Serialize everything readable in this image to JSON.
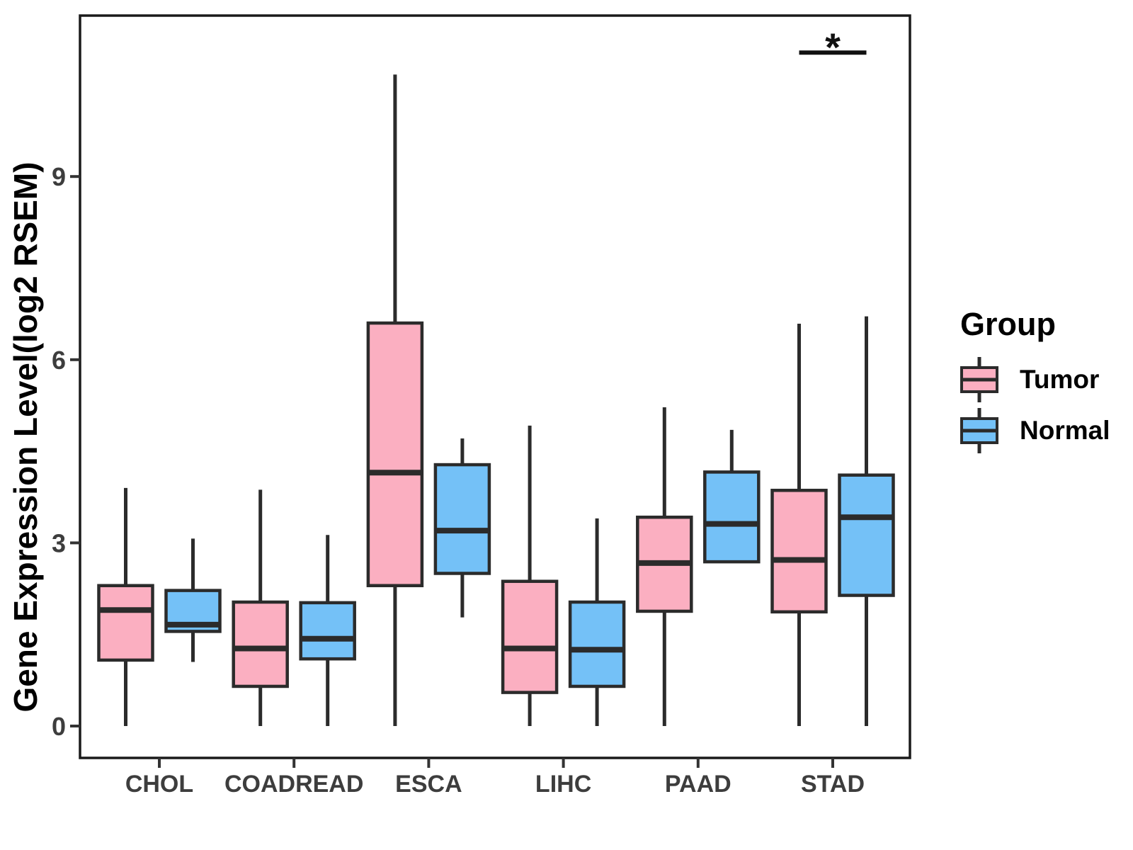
{
  "legend": {
    "title": "Group",
    "entries": [
      {
        "label": "Tumor",
        "color": "#FBAFC1"
      },
      {
        "label": "Normal",
        "color": "#74C1F7"
      }
    ]
  },
  "chart_data": {
    "type": "boxplot",
    "title": "",
    "xlabel": "",
    "ylabel": "Gene Expression Level(log2 RSEM)",
    "categories": [
      "CHOL",
      "COADREAD",
      "ESCA",
      "LIHC",
      "PAAD",
      "STAD"
    ],
    "y_ticks": [
      0,
      3,
      6,
      9
    ],
    "ylim": [
      -0.55,
      11.6
    ],
    "grid": false,
    "legend_position": "right",
    "series": [
      {
        "name": "Tumor",
        "color": "#FBAFC1",
        "boxes": [
          {
            "category": "CHOL",
            "min": 0,
            "q1": 1.08,
            "median": 1.9,
            "q3": 2.3,
            "max": 3.9
          },
          {
            "category": "COADREAD",
            "min": 0,
            "q1": 0.65,
            "median": 1.27,
            "q3": 2.03,
            "max": 3.87
          },
          {
            "category": "ESCA",
            "min": 0,
            "q1": 2.3,
            "median": 4.15,
            "q3": 6.6,
            "max": 10.67
          },
          {
            "category": "LIHC",
            "min": 0,
            "q1": 0.55,
            "median": 1.27,
            "q3": 2.37,
            "max": 4.92
          },
          {
            "category": "PAAD",
            "min": 0,
            "q1": 1.88,
            "median": 2.67,
            "q3": 3.42,
            "max": 5.22
          },
          {
            "category": "STAD",
            "min": 0,
            "q1": 1.87,
            "median": 2.72,
            "q3": 3.86,
            "max": 6.59
          }
        ]
      },
      {
        "name": "Normal",
        "color": "#74C1F7",
        "boxes": [
          {
            "category": "CHOL",
            "min": 1.05,
            "q1": 1.55,
            "median": 1.66,
            "q3": 2.22,
            "max": 3.07
          },
          {
            "category": "COADREAD",
            "min": 0,
            "q1": 1.1,
            "median": 1.43,
            "q3": 2.02,
            "max": 3.13
          },
          {
            "category": "ESCA",
            "min": 1.78,
            "q1": 2.5,
            "median": 3.2,
            "q3": 4.28,
            "max": 4.71
          },
          {
            "category": "LIHC",
            "min": 0,
            "q1": 0.65,
            "median": 1.25,
            "q3": 2.03,
            "max": 3.4
          },
          {
            "category": "PAAD",
            "min": 2.69,
            "q1": 2.69,
            "median": 3.31,
            "q3": 4.16,
            "max": 4.85
          },
          {
            "category": "STAD",
            "min": 0,
            "q1": 2.14,
            "median": 3.42,
            "q3": 4.11,
            "max": 6.71
          }
        ]
      }
    ],
    "annotations": [
      {
        "category": "STAD",
        "label": "*",
        "y_value": 11.03,
        "between": [
          "Tumor",
          "Normal"
        ]
      }
    ]
  },
  "style": {
    "background": "#FFFFFF",
    "box_stroke": "#2B2B2B",
    "panel_border": "#1A1A1A",
    "tick_mark_color": "#333333",
    "tick_text_color": "#3D3D3D",
    "annotation_color": "#111111"
  }
}
